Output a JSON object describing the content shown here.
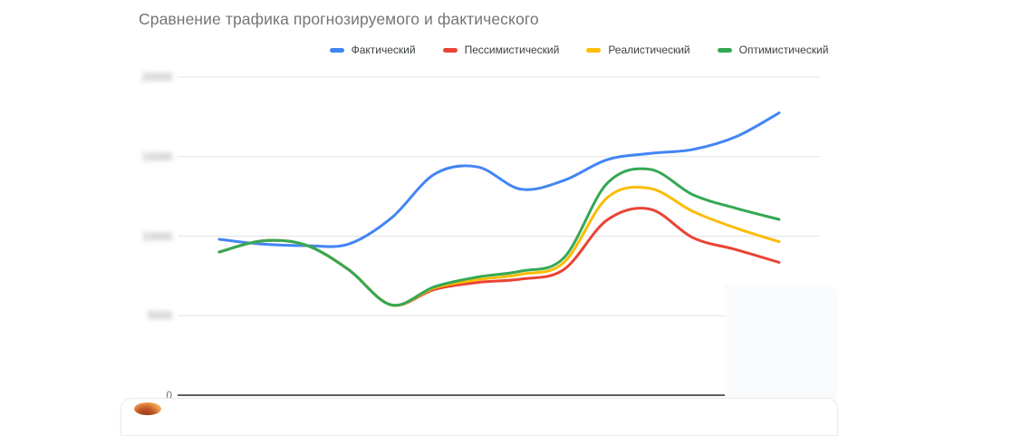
{
  "chart_data": {
    "type": "line",
    "title": "Сравнение трафика прогнозируемого и фактического",
    "xlabel": "",
    "ylabel": "",
    "ylim": [
      0,
      20000
    ],
    "grid": true,
    "smooth": true,
    "legend_position": "top",
    "x_tick_labels_visible": false,
    "yticks": [
      {
        "value": 0,
        "label": "0",
        "blurred": false
      },
      {
        "value": 5000,
        "label": "5000",
        "blurred": true
      },
      {
        "value": 10000,
        "label": "10000",
        "blurred": true
      },
      {
        "value": 15000,
        "label": "15000",
        "blurred": true
      },
      {
        "value": 20000,
        "label": "20000",
        "blurred": true
      }
    ],
    "series": [
      {
        "name": "Фактический",
        "color": "#4285F4",
        "values": [
          9800,
          9500,
          9400,
          9500,
          11150,
          13900,
          14350,
          12950,
          13500,
          14800,
          15200,
          15450,
          16250,
          17750
        ]
      },
      {
        "name": "Пессимистический",
        "color": "#EA4335",
        "values": [
          9000,
          9700,
          9450,
          7900,
          5670,
          6650,
          7090,
          7300,
          7900,
          11000,
          11700,
          9900,
          9150,
          8350
        ]
      },
      {
        "name": "Реалистический",
        "color": "#FBBC04",
        "values": [
          9000,
          9700,
          9450,
          7900,
          5670,
          6750,
          7260,
          7600,
          8340,
          12400,
          13000,
          11550,
          10500,
          9650
        ]
      },
      {
        "name": "Оптимистический",
        "color": "#34A853",
        "values": [
          9000,
          9700,
          9450,
          7900,
          5670,
          6820,
          7430,
          7800,
          8630,
          13300,
          14200,
          12600,
          11750,
          11050
        ]
      }
    ]
  },
  "colors": {
    "title_text": "#757575",
    "legend_text": "#3c4043",
    "gridline": "#e3e3e3",
    "axis_line": "#616161",
    "tick_label": "#757575"
  }
}
